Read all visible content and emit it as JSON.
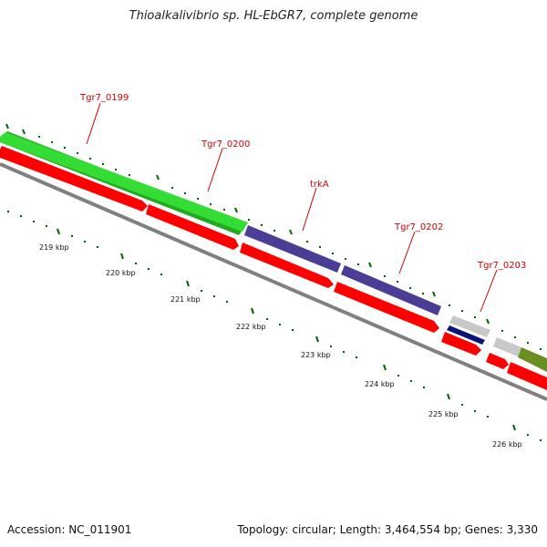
{
  "title": "Thioalkalivibrio sp. HL-EbGR7, complete genome",
  "footer": {
    "accession": "Accession: NC_011901",
    "summary": "Topology: circular; Length: 3,464,554 bp; Genes: 3,330"
  },
  "colors": {
    "backbone": "#808080",
    "red_strand": "#ff0000",
    "green_gene": "#33cc33",
    "purple_gene": "#4b3c96",
    "navy_gene": "#0a1478",
    "gray_gene": "#c0c0c0",
    "olive_gene": "#6b8e23",
    "tick_major": "#006400",
    "tick_minor": "#006400",
    "label_red": "#cc0000"
  },
  "gene_labels": [
    "Tgr7_0199",
    "Tgr7_0200",
    "trkA",
    "Tgr7_0202",
    "Tgr7_0203"
  ],
  "kbp_labels": [
    "219 kbp",
    "220 kbp",
    "221 kbp",
    "222 kbp",
    "223 kbp",
    "224 kbp",
    "225 kbp",
    "226 kbp"
  ]
}
